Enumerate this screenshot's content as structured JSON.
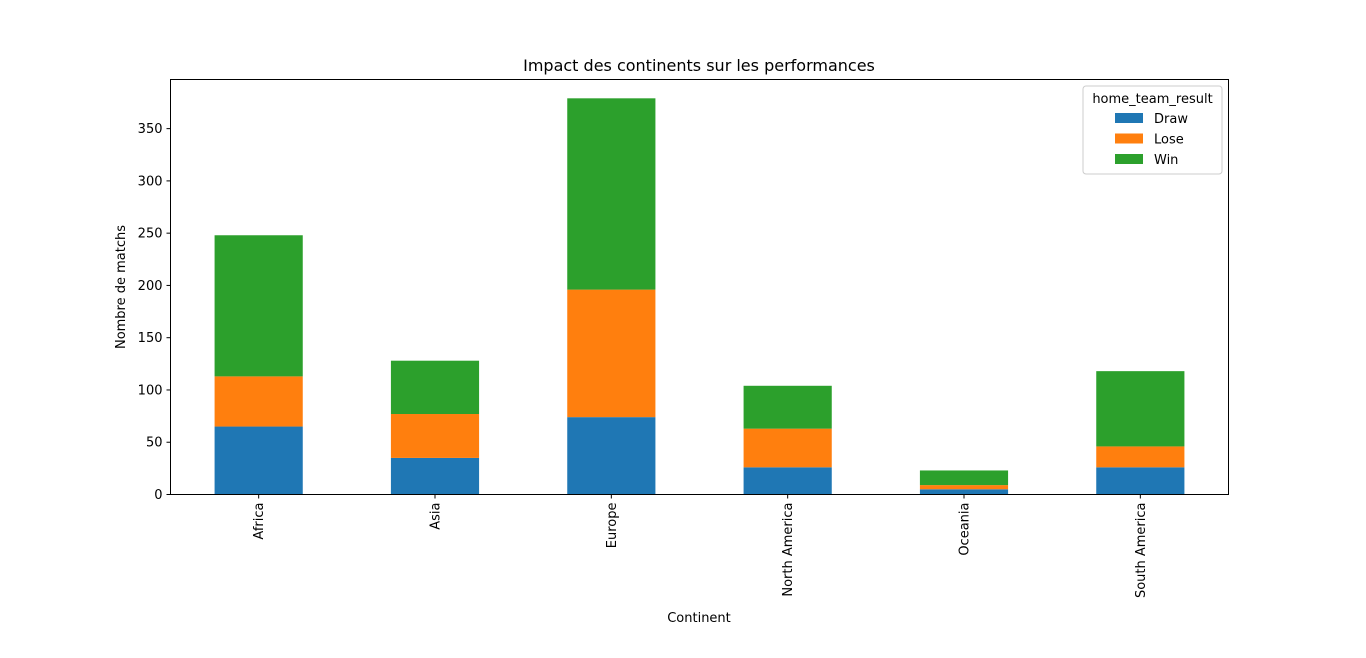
{
  "chart_data": {
    "type": "bar",
    "stacked": true,
    "title": "Impact des continents sur les performances",
    "xlabel": "Continent",
    "ylabel": "Nombre de matchs",
    "categories": [
      "Africa",
      "Asia",
      "Europe",
      "North America",
      "Oceania",
      "South America"
    ],
    "series": [
      {
        "name": "Draw",
        "color": "#1f77b4",
        "values": [
          65,
          35,
          74,
          26,
          5,
          26
        ]
      },
      {
        "name": "Lose",
        "color": "#ff7f0e",
        "values": [
          48,
          42,
          122,
          37,
          4,
          20
        ]
      },
      {
        "name": "Win",
        "color": "#2ca02c",
        "values": [
          135,
          51,
          183,
          41,
          14,
          72
        ]
      }
    ],
    "ylim": [
      0,
      397
    ],
    "yticks": [
      0,
      50,
      100,
      150,
      200,
      250,
      300,
      350
    ],
    "legend": {
      "title": "home_team_result",
      "position": "top-right"
    },
    "grid": false
  }
}
